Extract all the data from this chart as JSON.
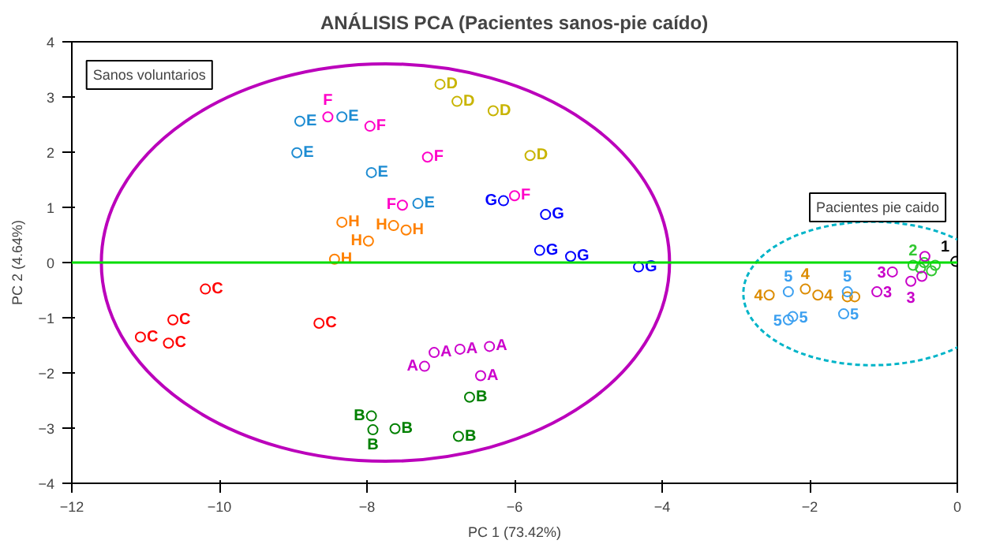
{
  "chart_data": {
    "type": "scatter",
    "title": "ANÁLISIS PCA (Pacientes sanos-pie caído)",
    "xlabel": "PC 1 (73.42%)",
    "ylabel": "PC 2 (4.64%)",
    "xlim": [
      -12,
      0
    ],
    "xticks": [
      -12,
      -10,
      -8,
      -6,
      -4,
      -2,
      0
    ],
    "ylim": [
      -4,
      4
    ],
    "yticks": [
      -4,
      -3,
      -2,
      -1,
      0,
      1,
      2,
      3,
      4
    ],
    "grid": false,
    "legend": false,
    "marker": "circle",
    "annotations": [
      "Sanos voluntarios",
      "Pacientes pie caido"
    ],
    "ref_lines": [
      {
        "axis": "y",
        "value": 0,
        "color": "#00dd00"
      }
    ],
    "series": [
      {
        "name": "A",
        "color": "#cc00cc",
        "x": [
          -7.09,
          -7.22,
          -6.74,
          -6.34,
          -6.46
        ],
        "values": [
          -1.63,
          -1.88,
          -1.57,
          -1.52,
          -2.05
        ]
      },
      {
        "name": "B",
        "color": "#008000",
        "x": [
          -7.94,
          -7.92,
          -7.62,
          -6.76,
          -6.61
        ],
        "values": [
          -2.78,
          -3.03,
          -3.01,
          -3.15,
          -2.44
        ]
      },
      {
        "name": "C",
        "color": "#ff0000",
        "x": [
          -10.19,
          -10.63,
          -11.07,
          -10.69,
          -8.65
        ],
        "values": [
          -0.48,
          -1.04,
          -1.35,
          -1.46,
          -1.1
        ]
      },
      {
        "name": "D",
        "color": "#c8b400",
        "x": [
          -7.01,
          -6.78,
          -6.29,
          -5.79
        ],
        "values": [
          3.23,
          2.92,
          2.75,
          1.94
        ]
      },
      {
        "name": "E",
        "color": "#1e8cd2",
        "x": [
          -8.91,
          -8.34,
          -8.95,
          -7.94,
          -7.31
        ],
        "values": [
          2.56,
          2.64,
          1.99,
          1.63,
          1.07
        ]
      },
      {
        "name": "F",
        "color": "#ff00c8",
        "x": [
          -8.53,
          -7.96,
          -7.18,
          -7.52,
          -6.0
        ],
        "values": [
          2.64,
          2.47,
          1.91,
          1.04,
          1.21
        ]
      },
      {
        "name": "G",
        "color": "#0000ff",
        "x": [
          -6.15,
          -5.58,
          -5.66,
          -5.24,
          -4.32
        ],
        "values": [
          1.12,
          0.87,
          0.22,
          0.11,
          -0.08
        ]
      },
      {
        "name": "H",
        "color": "#ff8000",
        "x": [
          -8.34,
          -7.64,
          -7.47,
          -7.98,
          -8.44
        ],
        "values": [
          0.73,
          0.67,
          0.59,
          0.39,
          0.06
        ]
      },
      {
        "name": "1",
        "color": "#000000",
        "x": [
          -0.02
        ],
        "values": [
          0.02
        ]
      },
      {
        "name": "2",
        "color": "#32c832",
        "x": [
          -0.6,
          -0.5,
          -0.45,
          -0.35,
          -0.3
        ],
        "values": [
          -0.05,
          -0.1,
          0.0,
          -0.15,
          -0.05
        ]
      },
      {
        "name": "3",
        "color": "#c800c8",
        "x": [
          -0.88,
          -1.09,
          -0.44,
          -0.63,
          -0.48
        ],
        "values": [
          -0.17,
          -0.53,
          0.11,
          -0.34,
          -0.25
        ]
      },
      {
        "name": "4",
        "color": "#dc8c00",
        "x": [
          -2.55,
          -2.06,
          -1.89,
          -1.49,
          -1.39
        ],
        "values": [
          -0.59,
          -0.48,
          -0.59,
          -0.62,
          -0.62
        ]
      },
      {
        "name": "5",
        "color": "#3ca0f0",
        "x": [
          -2.29,
          -2.29,
          -2.23,
          -1.54,
          -1.49
        ],
        "values": [
          -0.53,
          -1.04,
          -0.98,
          -0.93,
          -0.53
        ]
      }
    ]
  }
}
